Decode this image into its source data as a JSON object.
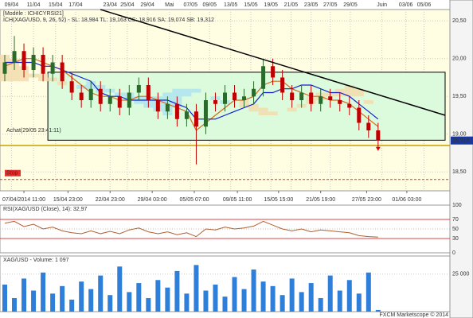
{
  "chart_data": [
    {
      "type": "candlestick",
      "model": "[Modèle : ICHICYRSI21]",
      "legend": "ICH(XAG/USD, 9, 26, 52) - SL: 18,984  TL: 19,163  CS: 18,916  SA: 19,074  SB: 19,312",
      "xlim": [
        -0.5,
        46.5
      ],
      "xticks_top": [
        {
          "value": 0.7,
          "label": "09/04"
        },
        {
          "value": 3,
          "label": "11/04"
        },
        {
          "value": 5.3,
          "label": "15/04"
        },
        {
          "value": 7.4,
          "label": "17/04"
        },
        {
          "value": 11,
          "label": "23/04"
        },
        {
          "value": 12.8,
          "label": "25/04"
        },
        {
          "value": 14.9,
          "label": "29/04"
        },
        {
          "value": 17.2,
          "label": "Mai"
        },
        {
          "value": 19.4,
          "label": "07/05"
        },
        {
          "value": 21.4,
          "label": "09/05"
        },
        {
          "value": 23.6,
          "label": "13/05"
        },
        {
          "value": 25.7,
          "label": "15/05"
        },
        {
          "value": 27.8,
          "label": "19/05"
        },
        {
          "value": 29.9,
          "label": "21/05"
        },
        {
          "value": 32,
          "label": "23/05"
        },
        {
          "value": 34,
          "label": "27/05"
        },
        {
          "value": 36.1,
          "label": "29/05"
        },
        {
          "value": 39.4,
          "label": "Juin"
        },
        {
          "value": 41.9,
          "label": "03/06"
        },
        {
          "value": 43.8,
          "label": "05/06"
        }
      ],
      "xticks": [
        {
          "value": 2,
          "label": "07/04/2014 11:00"
        },
        {
          "value": 6.6,
          "label": "15/04 23:00"
        },
        {
          "value": 11,
          "label": "22/04 23:00"
        },
        {
          "value": 15.4,
          "label": "29/04 03:00"
        },
        {
          "value": 19.8,
          "label": "05/05 07:00"
        },
        {
          "value": 24.3,
          "label": "09/05 11:00"
        },
        {
          "value": 28.6,
          "label": "15/05 15:00"
        },
        {
          "value": 33,
          "label": "21/05 19:00"
        },
        {
          "value": 37.8,
          "label": "27/05 23:00"
        },
        {
          "value": 42,
          "label": "01/06 03:00"
        }
      ],
      "ylim": [
        18.25,
        20.65
      ],
      "yticks": [
        {
          "value": 18.5,
          "label": "18,50"
        },
        {
          "value": 19,
          "label": "19,00"
        },
        {
          "value": 19.5,
          "label": "19,50"
        },
        {
          "value": 20,
          "label": "20,00"
        },
        {
          "value": 20.5,
          "label": "20,50"
        }
      ],
      "grid": true,
      "up_color": "#2a6a2a",
      "down_color": "#c00000",
      "open": [
        19.8,
        19.95,
        20.1,
        19.85,
        20.05,
        19.8,
        19.95,
        19.7,
        19.55,
        19.45,
        19.6,
        19.4,
        19.5,
        19.35,
        19.55,
        19.65,
        19.45,
        19.3,
        19.4,
        19.2,
        19.3,
        19.1,
        19.45,
        19.4,
        19.55,
        19.45,
        19.5,
        19.6,
        19.9,
        19.75,
        19.55,
        19.45,
        19.55,
        19.4,
        19.5,
        19.45,
        19.4,
        19.35,
        19.15,
        19.05
      ],
      "high": [
        20.05,
        20.3,
        20.2,
        20.15,
        20.15,
        20.05,
        20.05,
        19.8,
        19.65,
        19.7,
        19.7,
        19.6,
        19.6,
        19.65,
        19.75,
        19.75,
        19.55,
        19.5,
        19.5,
        19.4,
        19.4,
        19.55,
        19.55,
        19.65,
        19.65,
        19.6,
        19.7,
        20.0,
        20.0,
        19.85,
        19.65,
        19.65,
        19.65,
        19.6,
        19.6,
        19.55,
        19.5,
        19.45,
        19.25,
        19.15
      ],
      "low": [
        19.7,
        19.85,
        19.75,
        19.75,
        19.7,
        19.7,
        19.6,
        19.45,
        19.35,
        19.35,
        19.3,
        19.3,
        19.25,
        19.25,
        19.45,
        19.35,
        19.2,
        19.2,
        19.1,
        19.1,
        18.6,
        19.0,
        19.3,
        19.3,
        19.35,
        19.35,
        19.4,
        19.5,
        19.65,
        19.45,
        19.35,
        19.35,
        19.3,
        19.3,
        19.35,
        19.3,
        19.25,
        19.05,
        18.95,
        18.82
      ],
      "close": [
        19.95,
        20.1,
        19.85,
        20.05,
        19.8,
        19.95,
        19.7,
        19.55,
        19.45,
        19.6,
        19.4,
        19.5,
        19.35,
        19.55,
        19.65,
        19.45,
        19.3,
        19.4,
        19.2,
        19.3,
        19.1,
        19.45,
        19.4,
        19.55,
        19.45,
        19.5,
        19.6,
        19.9,
        19.75,
        19.55,
        19.45,
        19.55,
        19.4,
        19.5,
        19.45,
        19.4,
        19.35,
        19.15,
        19.05,
        18.92
      ],
      "cloud": {
        "colors": [
          "#f3dcae",
          "#aee3f0"
        ],
        "span_a": [
          20.05,
          20.0,
          19.9,
          19.8,
          19.8,
          19.75,
          19.7,
          19.65,
          19.6,
          19.6,
          19.55,
          19.55,
          19.5,
          19.45,
          19.4,
          19.35,
          19.3,
          19.25,
          19.35,
          19.5,
          19.55,
          19.5,
          19.45,
          19.4,
          19.4,
          19.45,
          19.4,
          19.35,
          19.3,
          19.3,
          19.35,
          19.4,
          19.5,
          19.55,
          19.55,
          19.6,
          19.65,
          19.6,
          19.45,
          19.3
        ],
        "span_b": [
          19.7,
          19.7,
          19.7,
          19.75,
          19.7,
          19.7,
          19.65,
          19.65,
          19.65,
          19.7,
          19.65,
          19.6,
          19.55,
          19.55,
          19.5,
          19.5,
          19.5,
          19.55,
          19.6,
          19.6,
          19.6,
          19.5,
          19.5,
          19.45,
          19.4,
          19.35,
          19.3,
          19.25,
          19.25,
          19.3,
          19.3,
          19.35,
          19.4,
          19.45,
          19.5,
          19.5,
          19.5,
          19.5,
          19.4,
          19.3
        ]
      },
      "lines": [
        {
          "color": "#d2691e",
          "values": [
            19.9,
            19.95,
            20.0,
            20.0,
            19.95,
            19.9,
            19.85,
            19.75,
            19.65,
            19.55,
            19.5,
            19.5,
            19.45,
            19.45,
            19.5,
            19.5,
            19.45,
            19.4,
            19.35,
            19.3,
            19.05,
            19.15,
            19.25,
            19.35,
            19.45,
            19.45,
            19.5,
            19.65,
            19.7,
            19.7,
            19.6,
            19.55,
            19.5,
            19.5,
            19.45,
            19.45,
            19.4,
            19.3,
            19.2,
            19.1
          ]
        },
        {
          "color": "#1020d0",
          "values": [
            19.95,
            19.95,
            19.95,
            19.95,
            19.9,
            19.9,
            19.85,
            19.8,
            19.75,
            19.7,
            19.55,
            19.5,
            19.5,
            19.45,
            19.45,
            19.45,
            19.45,
            19.45,
            19.4,
            19.35,
            19.2,
            19.2,
            19.2,
            19.25,
            19.3,
            19.35,
            19.4,
            19.55,
            19.55,
            19.6,
            19.6,
            19.65,
            19.65,
            19.6,
            19.55,
            19.55,
            19.5,
            19.4,
            19.3,
            19.2
          ]
        }
      ],
      "trendline": {
        "x": [
          10,
          46
        ],
        "y": [
          20.65,
          19.25
        ],
        "color": "#000000"
      },
      "box": {
        "x": [
          4.5,
          46
        ],
        "y": [
          18.92,
          19.82
        ],
        "color": "#dcfadc"
      },
      "entry": {
        "label": "Achat(29/05 23:41:11)",
        "value": 19.05
      },
      "support": {
        "value": 18.85,
        "color": "#c8a000"
      },
      "stop": {
        "label": "Stop",
        "value": 18.4,
        "color": "#e03030"
      },
      "last_price": {
        "value": 18.916,
        "label": "18,916"
      }
    },
    {
      "type": "line",
      "title": "RSI(XAG/USD (Close), 14): 32,97",
      "xlim": [
        -0.5,
        46.5
      ],
      "ylim": [
        0,
        100
      ],
      "yticks": [
        0,
        30,
        50,
        70,
        100
      ],
      "color": "#b06030",
      "values": [
        62,
        66,
        55,
        60,
        50,
        54,
        46,
        42,
        40,
        46,
        40,
        45,
        40,
        48,
        52,
        44,
        40,
        44,
        38,
        42,
        34,
        50,
        48,
        54,
        50,
        52,
        56,
        66,
        58,
        50,
        46,
        50,
        44,
        48,
        46,
        44,
        42,
        36,
        34,
        32.97
      ]
    },
    {
      "type": "bar",
      "title": "XAG/USD - Volume: 1 097",
      "footer": "FXCM Marketscope © 2014",
      "xlim": [
        -0.5,
        46.5
      ],
      "ylim": [
        0,
        37000
      ],
      "yticks": [
        {
          "value": 25000,
          "label": "25 000"
        }
      ],
      "color": "#2f7fd8",
      "values": [
        18000,
        9000,
        22000,
        14000,
        26000,
        12000,
        17000,
        8000,
        20000,
        15000,
        24000,
        11000,
        30000,
        13000,
        19000,
        9000,
        21000,
        16000,
        27000,
        12000,
        31000,
        14000,
        18000,
        10000,
        23000,
        15000,
        28000,
        20000,
        17000,
        11000,
        22000,
        13000,
        19000,
        9000,
        24000,
        14000,
        21000,
        12000,
        26000,
        1097
      ]
    }
  ]
}
